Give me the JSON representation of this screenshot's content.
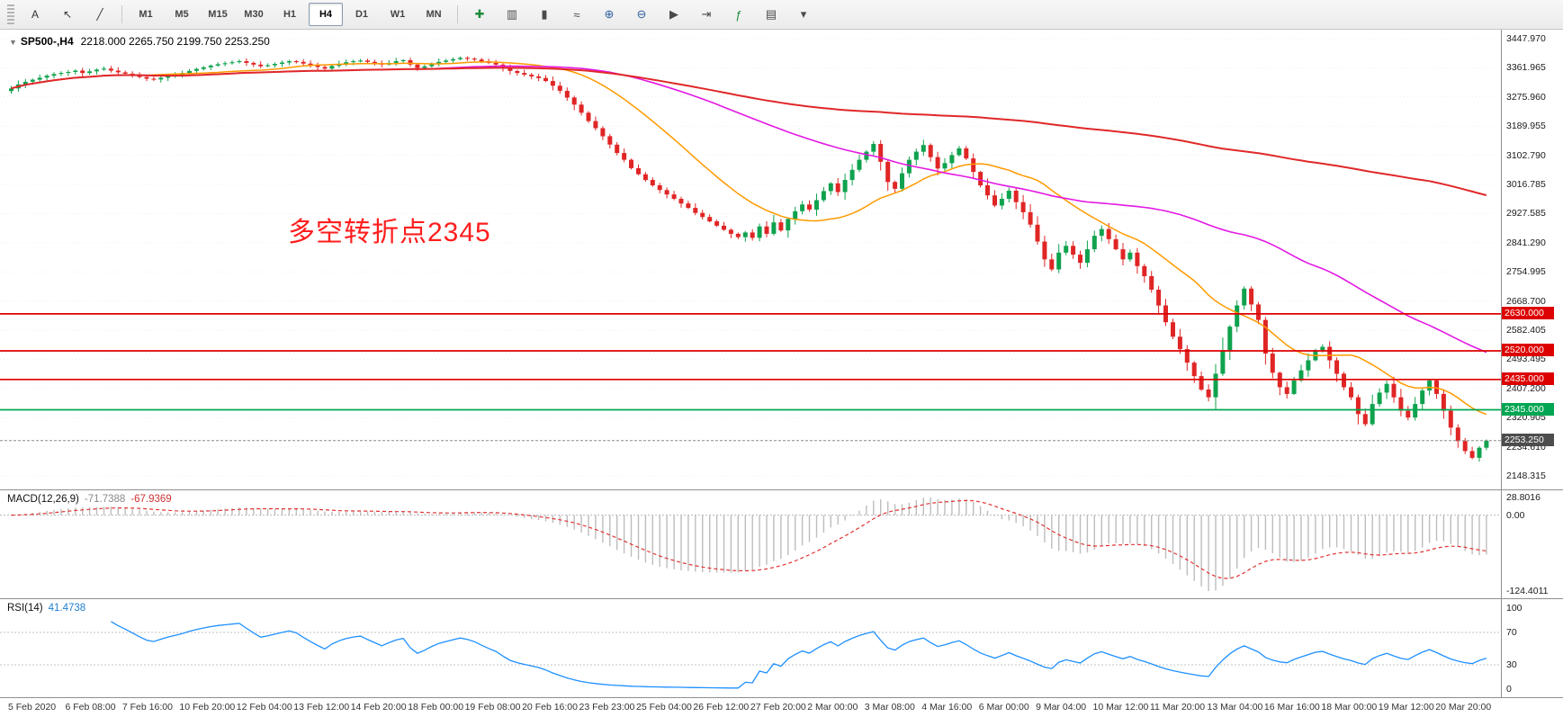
{
  "toolbar": {
    "tools": [
      {
        "name": "text-tool",
        "glyph": "A"
      },
      {
        "name": "cursor-tool",
        "glyph": "↖"
      },
      {
        "name": "trendline-tool",
        "glyph": "╱"
      }
    ],
    "timeframes": [
      "M1",
      "M5",
      "M15",
      "M30",
      "H1",
      "H4",
      "D1",
      "W1",
      "MN"
    ],
    "active_timeframe": "H4",
    "icons": [
      {
        "name": "new-order-icon",
        "glyph": "✚",
        "color": "#1f8a3b"
      },
      {
        "name": "chart-bars-icon",
        "glyph": "▥",
        "color": "#4a4a4a"
      },
      {
        "name": "chart-candles-icon",
        "glyph": "▮",
        "color": "#4a4a4a"
      },
      {
        "name": "chart-line-icon",
        "glyph": "≈",
        "color": "#4a4a4a"
      },
      {
        "name": "zoom-in-icon",
        "glyph": "⊕",
        "color": "#2f5f9e"
      },
      {
        "name": "zoom-out-icon",
        "glyph": "⊖",
        "color": "#2f5f9e"
      },
      {
        "name": "auto-scroll-icon",
        "glyph": "▶",
        "color": "#4a4a4a"
      },
      {
        "name": "chart-shift-icon",
        "glyph": "⇥",
        "color": "#4a4a4a"
      },
      {
        "name": "indicators-icon",
        "glyph": "ƒ",
        "color": "#1f8a3b"
      },
      {
        "name": "templates-icon",
        "glyph": "▤",
        "color": "#4a4a4a"
      },
      {
        "name": "period-dropdown-icon",
        "glyph": "▾",
        "color": "#4a4a4a"
      }
    ]
  },
  "header": {
    "symbol_period": "SP500-,H4",
    "ohlc": "2218.000 2265.750 2199.750 2253.250"
  },
  "chart_data": {
    "type": "candlestick",
    "symbol": "SP500-",
    "timeframe": "H4",
    "candle_up_color": "#0fa24e",
    "candle_down_color": "#e02525",
    "y_axis": {
      "top_price": 3447.97,
      "bottom_price": 2148.315
    },
    "price_axis_ticks": [
      "3447.970",
      "3361.965",
      "3275.960",
      "3189.955",
      "3102.790",
      "3016.785",
      "2927.585",
      "2841.290",
      "2754.995",
      "2668.700",
      "2582.405",
      "2493.495",
      "2407.200",
      "2320.905",
      "2234.610",
      "2148.315"
    ],
    "closes": [
      3300,
      3312,
      3320,
      3326,
      3332,
      3338,
      3343,
      3346,
      3349,
      3353,
      3346,
      3351,
      3356,
      3359,
      3353,
      3348,
      3344,
      3339,
      3334,
      3329,
      3327,
      3332,
      3337,
      3341,
      3346,
      3352,
      3358,
      3363,
      3368,
      3372,
      3375,
      3378,
      3381,
      3376,
      3371,
      3366,
      3369,
      3373,
      3377,
      3381,
      3379,
      3374,
      3369,
      3364,
      3359,
      3367,
      3373,
      3378,
      3381,
      3383,
      3379,
      3375,
      3371,
      3376,
      3381,
      3384,
      3371,
      3361,
      3366,
      3373,
      3379,
      3383,
      3387,
      3391,
      3389,
      3386,
      3381,
      3376,
      3371,
      3362,
      3352,
      3346,
      3341,
      3336,
      3331,
      3322,
      3308,
      3293,
      3273,
      3252,
      3228,
      3203,
      3182,
      3158,
      3133,
      3108,
      3088,
      3063,
      3045,
      3028,
      3012,
      2998,
      2985,
      2972,
      2958,
      2945,
      2930,
      2918,
      2905,
      2892,
      2880,
      2868,
      2858,
      2872,
      2856,
      2890,
      2868,
      2902,
      2878,
      2912,
      2935,
      2955,
      2940,
      2968,
      2995,
      3018,
      2992,
      3028,
      3058,
      3088,
      3112,
      3135,
      3082,
      3022,
      3002,
      3048,
      3088,
      3112,
      3132,
      3096,
      3062,
      3078,
      3102,
      3122,
      3092,
      3052,
      3012,
      2982,
      2952,
      2972,
      2996,
      2962,
      2932,
      2895,
      2845,
      2792,
      2762,
      2812,
      2832,
      2806,
      2782,
      2822,
      2862,
      2882,
      2852,
      2822,
      2792,
      2812,
      2772,
      2742,
      2702,
      2655,
      2605,
      2562,
      2525,
      2485,
      2445,
      2405,
      2382,
      2452,
      2522,
      2592,
      2655,
      2705,
      2658,
      2612,
      2512,
      2455,
      2412,
      2392,
      2432,
      2462,
      2492,
      2522,
      2532,
      2492,
      2452,
      2412,
      2382,
      2332,
      2302,
      2362,
      2396,
      2422,
      2382,
      2342,
      2322,
      2362,
      2402,
      2432,
      2392,
      2342,
      2292,
      2252,
      2222,
      2202,
      2232,
      2253.25
    ],
    "moving_averages": [
      {
        "name": "ma-fast",
        "period": 20,
        "color": "#ff9a00",
        "width": 1.5
      },
      {
        "name": "ma-mid",
        "period": 60,
        "color": "#e318e3",
        "width": 1.6
      },
      {
        "name": "ma-slow",
        "period": 200,
        "color": "#e02828",
        "width": 2
      }
    ],
    "levels": [
      {
        "price": 2630.0,
        "label": "2630.000",
        "color": "#dd0000"
      },
      {
        "price": 2520.0,
        "label": "2520.000",
        "color": "#dd0000"
      },
      {
        "price": 2435.0,
        "label": "2435.000",
        "color": "#dd0000"
      },
      {
        "price": 2345.0,
        "label": "2345.000",
        "color": "#00a651"
      }
    ],
    "current_price": {
      "price": 2253.25,
      "label": "2253.250",
      "tag_color": "#4d4d4d"
    },
    "annotation": {
      "text": "多空转折点2345",
      "color": "#ff1e1e"
    },
    "indicators": {
      "macd": {
        "label": "MACD(12,26,9)",
        "value_main": "-71.7388",
        "value_signal": "-67.9369",
        "params": [
          12,
          26,
          9
        ],
        "histogram_color": "#bdbdbd",
        "signal_color": "#e03232",
        "scale_labels": [
          "28.8016",
          "0.00",
          "-124.4011"
        ]
      },
      "rsi": {
        "label": "RSI(14)",
        "value": "41.4738",
        "period": 14,
        "line_color": "#1e90ff",
        "levels": [
          70,
          30
        ],
        "scale_labels": [
          "100",
          "70",
          "30",
          "0"
        ]
      }
    },
    "time_axis_labels": [
      "5 Feb 2020",
      "6 Feb 08:00",
      "7 Feb 16:00",
      "10 Feb 20:00",
      "12 Feb 04:00",
      "13 Feb 12:00",
      "14 Feb 20:00",
      "18 Feb 00:00",
      "19 Feb 08:00",
      "20 Feb 16:00",
      "23 Feb 23:00",
      "25 Feb 04:00",
      "26 Feb 12:00",
      "27 Feb 20:00",
      "2 Mar 00:00",
      "3 Mar 08:00",
      "4 Mar 16:00",
      "6 Mar 00:00",
      "9 Mar 04:00",
      "10 Mar 12:00",
      "11 Mar 20:00",
      "13 Mar 04:00",
      "16 Mar 16:00",
      "18 Mar 00:00",
      "19 Mar 12:00",
      "20 Mar 20:00"
    ]
  }
}
